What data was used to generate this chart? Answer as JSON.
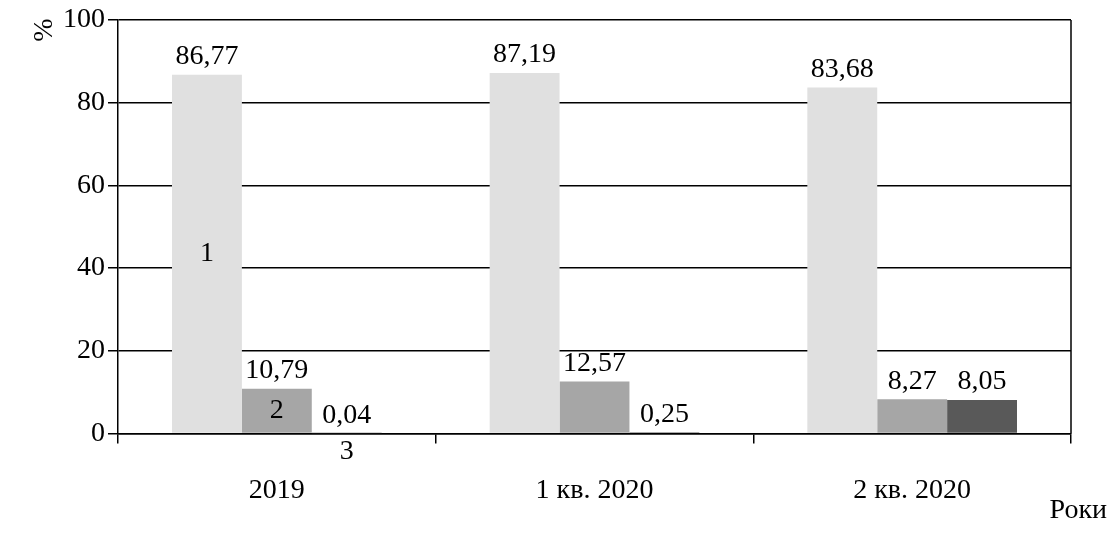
{
  "chart_data": {
    "type": "bar",
    "xlabel": "Роки",
    "ylabel": "%",
    "categories": [
      "2019",
      "1 кв. 2020",
      "2 кв. 2020"
    ],
    "series": [
      {
        "name": "1",
        "color": "#e0e0e0",
        "values": [
          86.77,
          87.19,
          83.68
        ],
        "value_labels": [
          "86,77",
          "87,19",
          "83,68"
        ]
      },
      {
        "name": "2",
        "color": "#a6a6a6",
        "values": [
          10.79,
          12.57,
          8.27
        ],
        "value_labels": [
          "10,79",
          "12,57",
          "8,27"
        ]
      },
      {
        "name": "3",
        "color": "#595959",
        "values": [
          0.04,
          0.25,
          8.05
        ],
        "value_labels": [
          "0,04",
          "0,25",
          "8,05"
        ]
      }
    ],
    "ylim": [
      0,
      100
    ],
    "yticks": [
      0,
      20,
      40,
      60,
      80,
      100
    ],
    "grid": "y"
  }
}
